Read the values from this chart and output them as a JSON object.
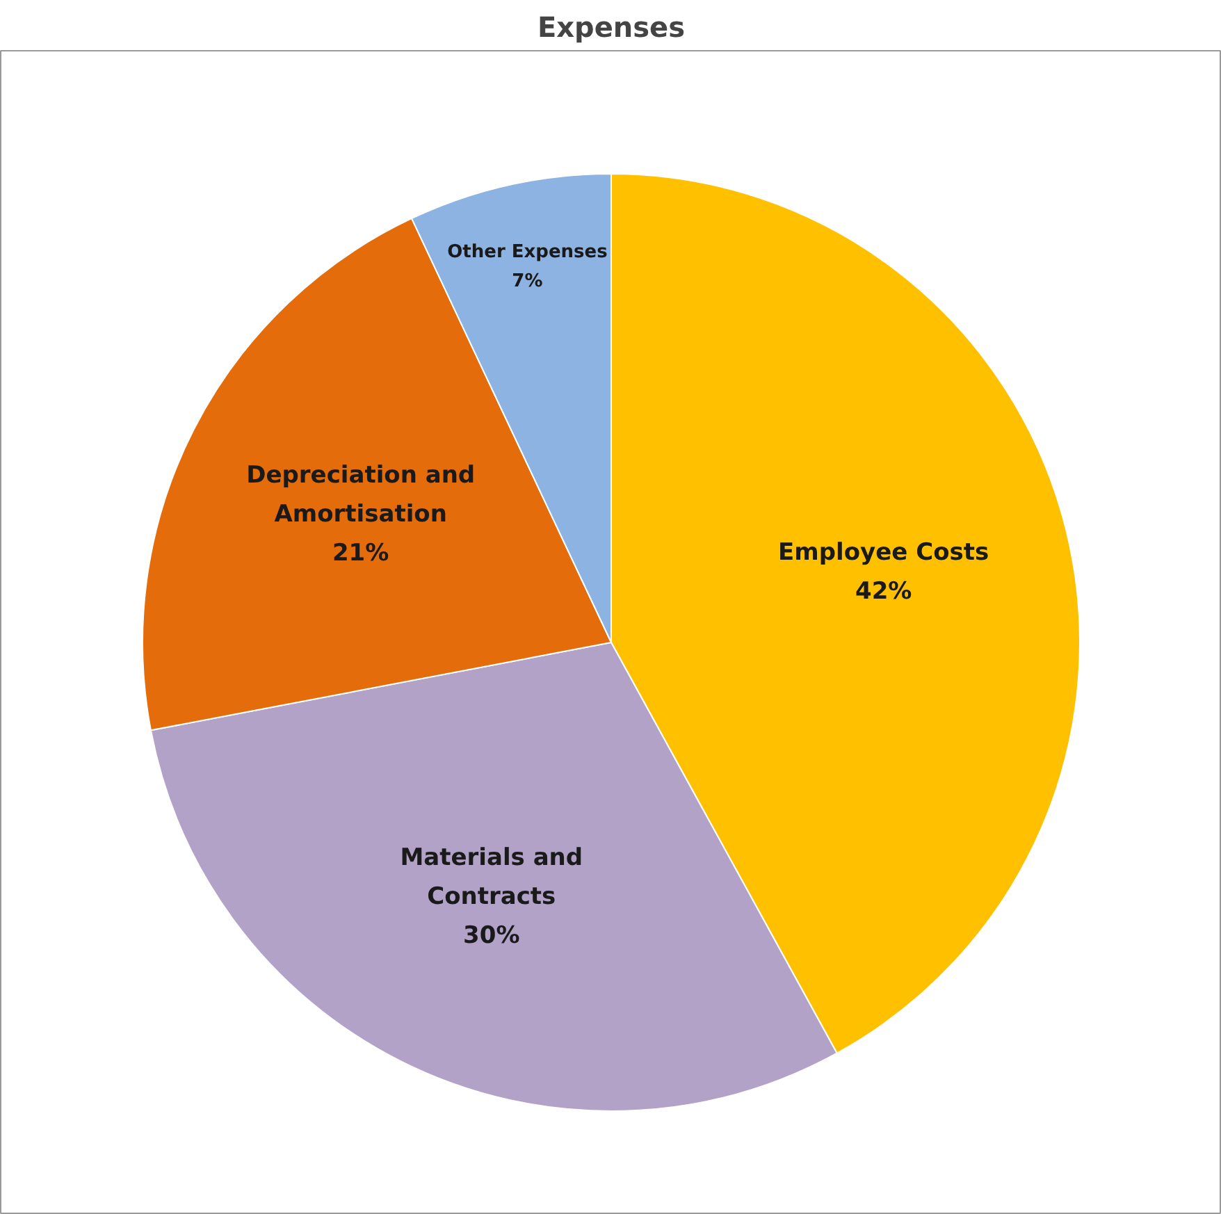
{
  "chart_data": {
    "type": "pie",
    "title": "Expenses",
    "categories": [
      "Employee Costs",
      "Materials and Contracts",
      "Depreciation and Amortisation",
      "Other Expenses"
    ],
    "values": [
      42,
      30,
      21,
      7
    ],
    "colors": [
      "#ffc000",
      "#b3a2c7",
      "#e46c0a",
      "#8db3e2"
    ],
    "value_labels": [
      "42%",
      "30%",
      "21%",
      "7%"
    ],
    "legend": false
  }
}
